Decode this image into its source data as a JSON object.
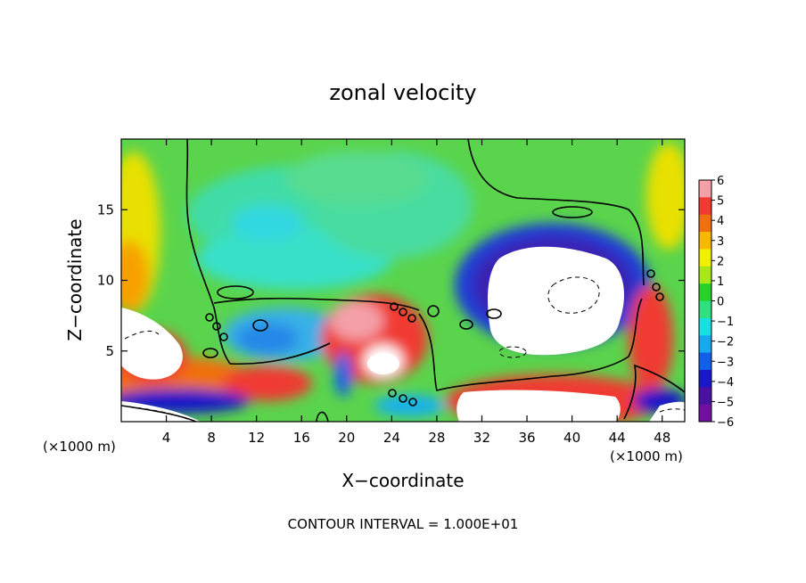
{
  "chart_data": {
    "type": "heatmap",
    "title": "zonal velocity",
    "xlabel": "X−coordinate",
    "ylabel": "Z−coordinate",
    "x_unit_left": "(×1000 m)",
    "x_unit_right": "(×1000 m)",
    "xlim": [
      0,
      50
    ],
    "ylim": [
      0,
      20
    ],
    "x_ticks": [
      4,
      8,
      12,
      16,
      20,
      24,
      28,
      32,
      36,
      40,
      44,
      48
    ],
    "y_ticks": [
      5,
      10,
      15
    ],
    "colorbar": {
      "ticks": [
        6,
        5,
        4,
        3,
        2,
        1,
        0,
        -1,
        -2,
        -3,
        -4,
        -5,
        -6
      ],
      "colors": [
        "#f4a0a8",
        "#f03a32",
        "#f07010",
        "#f8b800",
        "#f2f000",
        "#a8e818",
        "#28d028",
        "#30e080",
        "#18e0e0",
        "#18a8f0",
        "#1060e8",
        "#1818c8",
        "#4a10a0",
        "#7010a0"
      ]
    },
    "footnote": "CONTOUR INTERVAL = 1.000E+01"
  }
}
